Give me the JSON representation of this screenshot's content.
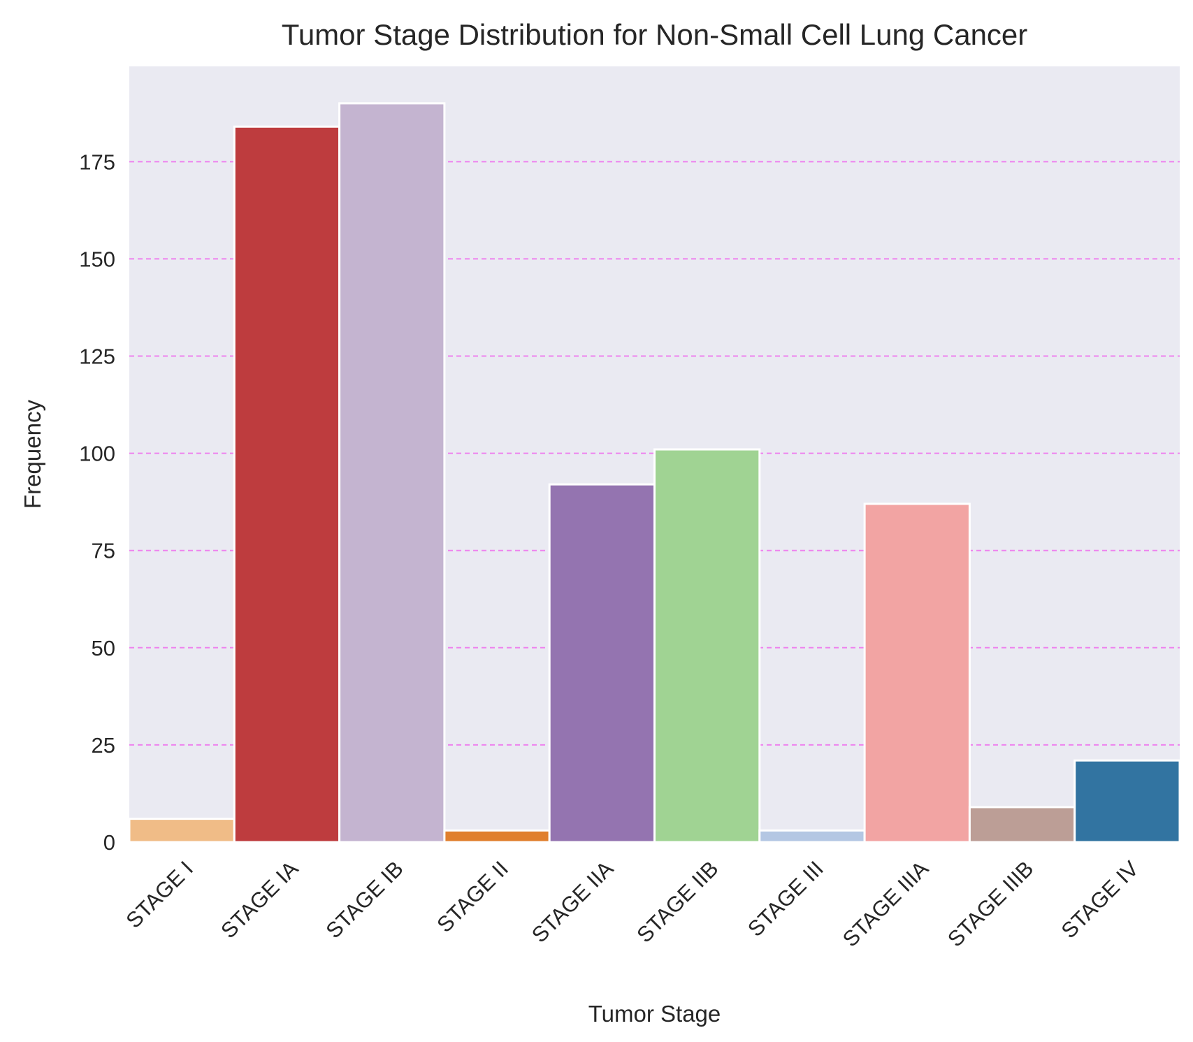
{
  "chart_data": {
    "type": "bar",
    "title": "Tumor Stage Distribution for Non-Small Cell Lung Cancer",
    "xlabel": "Tumor Stage",
    "ylabel": "Frequency",
    "categories": [
      "STAGE I",
      "STAGE IA",
      "STAGE IB",
      "STAGE II",
      "STAGE IIA",
      "STAGE IIB",
      "STAGE III",
      "STAGE IIIA",
      "STAGE IIIB",
      "STAGE IV"
    ],
    "values": [
      6,
      184,
      190,
      3,
      92,
      101,
      3,
      87,
      9,
      21
    ],
    "colors": [
      "#f0bc87",
      "#be3c3e",
      "#c4b4d0",
      "#e07f2d",
      "#9474b0",
      "#a0d393",
      "#b4c7e3",
      "#f2a4a3",
      "#bc9e96",
      "#3274a1"
    ],
    "ylim": [
      0,
      199.5
    ],
    "yticks": [
      0,
      25,
      50,
      75,
      100,
      125,
      150,
      175
    ],
    "grid": true,
    "grid_style": "dashed",
    "grid_color": "#ee82ee",
    "plot_background": "#eaeaf2",
    "bar_edge_color": "#ffffff",
    "xtick_rotation": 45
  }
}
